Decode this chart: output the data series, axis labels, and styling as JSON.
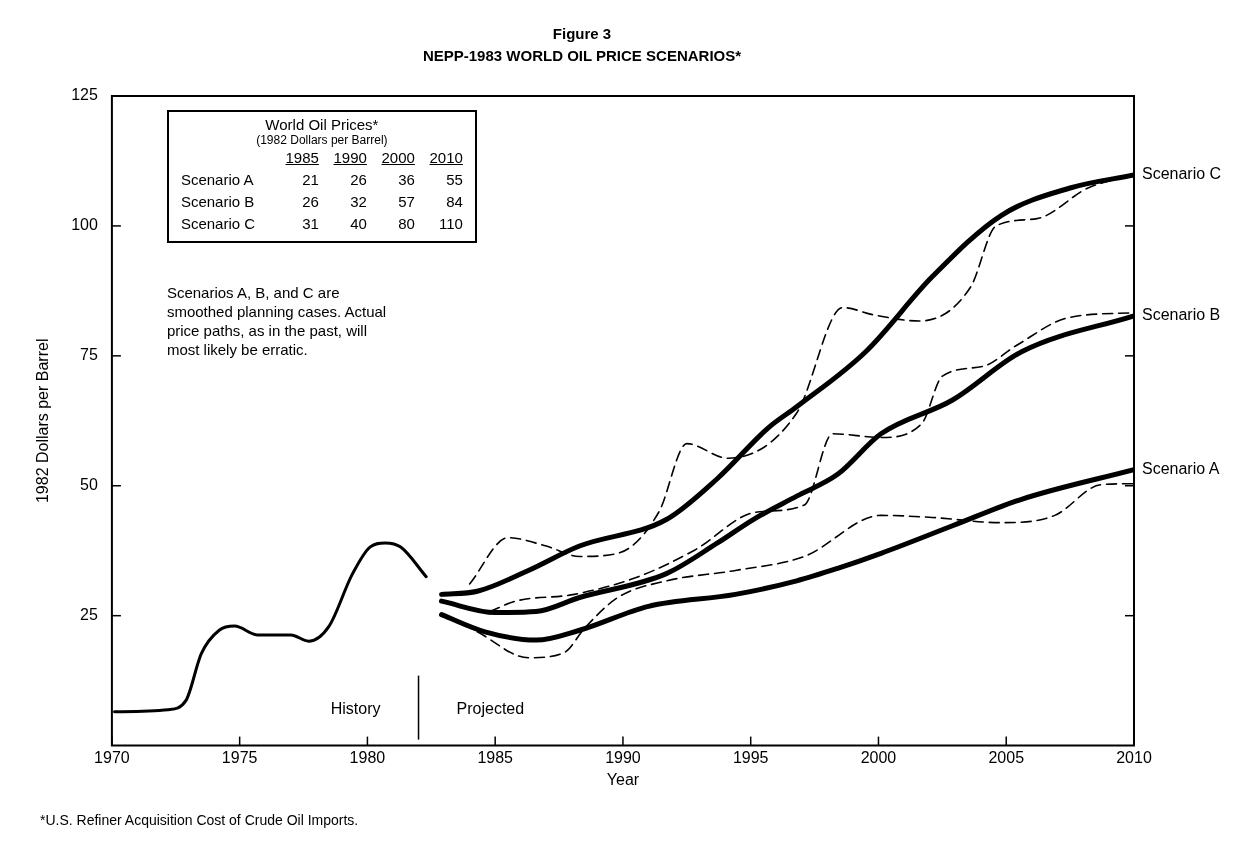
{
  "chart_data": {
    "type": "line",
    "title": "Figure 3",
    "subtitle": "NEPP-1983 WORLD OIL PRICE SCENARIOS*",
    "xlabel": "Year",
    "ylabel": "1982 Dollars per Barrel",
    "xlim": [
      1970,
      2010
    ],
    "xticks": [
      1970,
      1975,
      1980,
      1985,
      1990,
      1995,
      2000,
      2005,
      2010
    ],
    "ylim": [
      0,
      125
    ],
    "yticks": [
      25,
      50,
      75,
      100,
      125
    ],
    "legend": false,
    "marker": "none",
    "series": [
      {
        "color": "#000000",
        "line_style": "solid",
        "x": [
          1970.1,
          1972.2,
          1972.9,
          1973.5,
          1974.2,
          1974.8,
          1975.7,
          1977.0,
          1977.7,
          1978.5,
          1979.4,
          1980.1,
          1980.7,
          1981.3,
          1982.3
        ],
        "values": [
          6.5,
          6.9,
          8.7,
          17.7,
          22.2,
          23.0,
          21.3,
          21.3,
          20.1,
          23.0,
          32.9,
          38.2,
          39.0,
          38.2,
          32.5
        ]
      },
      {
        "name": "Scenario A",
        "color": "#000000",
        "line_style": "solid",
        "x": [
          1982.9,
          1984.6,
          1986.6,
          1988.3,
          1991.0,
          1994.4,
          1996.8,
          1998.4,
          2000.1,
          2002.9,
          2005.6,
          2010
        ],
        "values": [
          25.2,
          21.9,
          20.3,
          22.2,
          26.8,
          29.1,
          31.7,
          34.1,
          37.0,
          42.3,
          47.4,
          53.1
        ]
      },
      {
        "name": "Scenario B",
        "color": "#000000",
        "line_style": "solid",
        "x": [
          1982.9,
          1985.0,
          1986.6,
          1988.3,
          1991.7,
          1993.7,
          1995.1,
          1996.8,
          1998.4,
          2000.1,
          2002.9,
          2005.6,
          2010
        ],
        "values": [
          27.8,
          25.6,
          25.8,
          28.5,
          33.1,
          39.0,
          43.5,
          48.0,
          52.2,
          60.0,
          66.5,
          75.8,
          82.7
        ]
      },
      {
        "name": "Scenario C",
        "color": "#000000",
        "line_style": "solid",
        "x": [
          1982.9,
          1984.3,
          1986.3,
          1988.3,
          1991.7,
          1993.7,
          1995.7,
          1996.8,
          1999.5,
          2002.1,
          2004.8,
          2007.5,
          2010
        ],
        "values": [
          29.1,
          29.7,
          33.7,
          38.4,
          43.5,
          51.4,
          61.2,
          65.2,
          75.8,
          90.2,
          102.0,
          107.3,
          109.8
        ]
      },
      {
        "color": "#000000",
        "line_style": "dashed",
        "x": [
          1984.3,
          1986.3,
          1987.7,
          1988.5,
          1989.8,
          1991.7,
          1994.4,
          1997.1,
          2000.1,
          2002.1,
          2004.8,
          2006.9,
          2008.7,
          2010
        ],
        "values": [
          21.9,
          16.9,
          17.9,
          22.6,
          28.5,
          31.7,
          33.7,
          36.4,
          44.3,
          43.9,
          42.9,
          44.3,
          50.2,
          50.4
        ]
      },
      {
        "color": "#000000",
        "line_style": "dashed",
        "x": [
          1984.8,
          1985.8,
          1988.1,
          1990.6,
          1992.8,
          1995.2,
          1997.1,
          1998.2,
          2000.1,
          2001.7,
          2002.5,
          2004.1,
          2005.4,
          2007.4,
          2010
        ],
        "values": [
          25.8,
          27.8,
          29.1,
          32.5,
          37.6,
          44.9,
          46.3,
          60.0,
          59.3,
          62.0,
          71.1,
          73.0,
          77.0,
          82.3,
          83.3
        ]
      },
      {
        "color": "#000000",
        "line_style": "dashed",
        "x": [
          1984.0,
          1985.5,
          1987.0,
          1988.3,
          1989.8,
          1991.4,
          1992.5,
          1994.1,
          1996.8,
          1998.6,
          1999.8,
          2001.6,
          2003.6,
          2004.6,
          2006.2,
          2008.2,
          2010
        ],
        "values": [
          31.1,
          40.0,
          38.4,
          36.4,
          37.0,
          44.9,
          58.1,
          55.3,
          64.0,
          84.3,
          82.9,
          81.7,
          88.2,
          100.0,
          101.4,
          107.3,
          109.8
        ]
      }
    ],
    "ref_lines": [
      {
        "axis": "x",
        "value": 1982
      }
    ],
    "annotations": [
      "World Oil Prices*",
      "(1982 Dollars per Barrel)",
      "\t1985\t1990\t2000\t2010",
      "Scenario A\t21\t26\t36\t55",
      "Scenario B\t26\t32\t57\t84",
      "Scenario C\t31\t40\t80\t110",
      "Scenarios A, B, and C are smoothed planning cases. Actual price paths, as in the past, will most likely be erratic.",
      "*U.S. Refiner Acquisition Cost of Crude Oil Imports.",
      "History",
      "Projected"
    ]
  }
}
